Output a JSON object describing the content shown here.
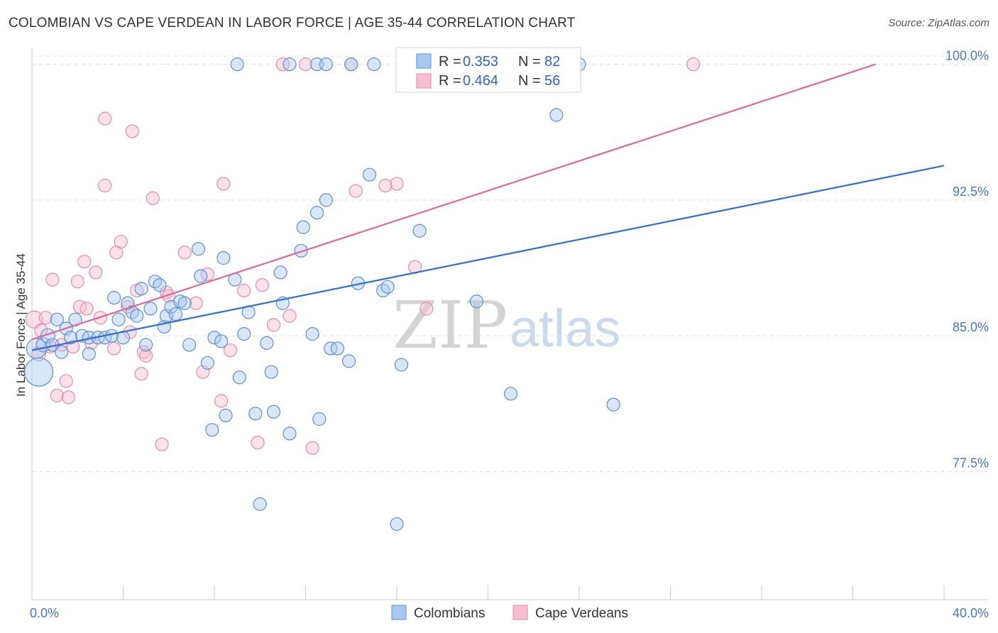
{
  "title": "COLOMBIAN VS CAPE VERDEAN IN LABOR FORCE | AGE 35-44 CORRELATION CHART",
  "source": "Source: ZipAtlas.com",
  "watermark": {
    "zip": "ZIP",
    "atlas": "atlas"
  },
  "colors": {
    "blue_fill": "#a9c8f0",
    "blue_stroke": "#5b8fd6",
    "blue_line": "#2f6fd0",
    "pink_fill": "#f6bfd0",
    "pink_stroke": "#e88aa8",
    "pink_line": "#e0679a",
    "grid": "#dddddd",
    "axis_tick_text": "#4477cc"
  },
  "legend": {
    "rows": [
      {
        "r_label": "R = ",
        "r_value": "0.353",
        "n_label": "N = ",
        "n_value": "82"
      },
      {
        "r_label": "R = ",
        "r_value": "0.464",
        "n_label": "N = ",
        "n_value": "56"
      }
    ]
  },
  "chart_data": {
    "type": "scatter",
    "title": "COLOMBIAN VS CAPE VERDEAN IN LABOR FORCE | AGE 35-44 CORRELATION CHART",
    "xlabel": "",
    "ylabel": "In Labor Force | Age 35-44",
    "xlim": [
      0,
      40
    ],
    "ylim": [
      70.5,
      101.2
    ],
    "x_tick_labels": [
      "0.0%",
      "40.0%"
    ],
    "y_ticks": [
      77.5,
      85.0,
      92.5,
      100.0
    ],
    "y_tick_labels": [
      "77.5%",
      "85.0%",
      "92.5%",
      "100.0%"
    ],
    "grid": true,
    "legend_position": "top-center",
    "series": [
      {
        "name": "Colombians",
        "r": 0.353,
        "n": 82,
        "trend": {
          "x": [
            0,
            40
          ],
          "y": [
            84.2,
            94.4
          ]
        },
        "points": [
          [
            0.2,
            84.3,
            14
          ],
          [
            0.3,
            83.0,
            20
          ],
          [
            0.5,
            84.5,
            10
          ],
          [
            0.7,
            85.0,
            10
          ],
          [
            0.9,
            84.5,
            9
          ],
          [
            1.1,
            85.9,
            9
          ],
          [
            1.3,
            84.1,
            9
          ],
          [
            1.5,
            85.4,
            9
          ],
          [
            1.7,
            84.9,
            9
          ],
          [
            1.9,
            85.9,
            9
          ],
          [
            2.2,
            85.0,
            9
          ],
          [
            2.5,
            84.9,
            9
          ],
          [
            2.5,
            84.0,
            9
          ],
          [
            2.9,
            84.9,
            9
          ],
          [
            3.2,
            84.9,
            9
          ],
          [
            3.5,
            85.0,
            9
          ],
          [
            3.6,
            87.1,
            9
          ],
          [
            3.8,
            85.9,
            9
          ],
          [
            4.0,
            84.9,
            9
          ],
          [
            4.2,
            86.8,
            9
          ],
          [
            4.4,
            86.3,
            9
          ],
          [
            4.6,
            86.1,
            9
          ],
          [
            4.8,
            87.6,
            9
          ],
          [
            5.0,
            84.5,
            9
          ],
          [
            5.2,
            86.5,
            9
          ],
          [
            5.4,
            88.0,
            9
          ],
          [
            5.6,
            87.8,
            9
          ],
          [
            5.8,
            85.5,
            9
          ],
          [
            5.9,
            86.1,
            9
          ],
          [
            6.1,
            86.6,
            9
          ],
          [
            6.3,
            86.2,
            9
          ],
          [
            6.5,
            86.9,
            9
          ],
          [
            6.7,
            86.8,
            9
          ],
          [
            6.9,
            84.5,
            9
          ],
          [
            7.3,
            89.8,
            9
          ],
          [
            7.4,
            88.3,
            9
          ],
          [
            7.7,
            83.5,
            9
          ],
          [
            7.9,
            79.8,
            9
          ],
          [
            8.0,
            84.9,
            9
          ],
          [
            8.3,
            84.7,
            9
          ],
          [
            8.4,
            89.3,
            9
          ],
          [
            8.5,
            80.6,
            9
          ],
          [
            8.9,
            88.1,
            9
          ],
          [
            9.1,
            82.7,
            9
          ],
          [
            9.3,
            85.1,
            9
          ],
          [
            9.5,
            86.3,
            9
          ],
          [
            9.8,
            80.7,
            9
          ],
          [
            10.0,
            75.7,
            9
          ],
          [
            10.3,
            84.6,
            9
          ],
          [
            10.5,
            83.0,
            9
          ],
          [
            10.6,
            80.8,
            9
          ],
          [
            10.9,
            88.5,
            9
          ],
          [
            11.0,
            86.8,
            9
          ],
          [
            11.3,
            79.6,
            9
          ],
          [
            11.8,
            89.7,
            9
          ],
          [
            11.9,
            91.0,
            9
          ],
          [
            12.3,
            85.1,
            9
          ],
          [
            12.5,
            91.8,
            9
          ],
          [
            12.5,
            100.0,
            9
          ],
          [
            12.6,
            80.4,
            9
          ],
          [
            12.9,
            92.5,
            9
          ],
          [
            13.1,
            84.3,
            9
          ],
          [
            13.4,
            84.3,
            9
          ],
          [
            13.9,
            83.6,
            9
          ],
          [
            14.0,
            100.0,
            9
          ],
          [
            14.3,
            87.9,
            9
          ],
          [
            14.8,
            93.9,
            9
          ],
          [
            15.0,
            100.0,
            9
          ],
          [
            15.4,
            87.5,
            9
          ],
          [
            15.6,
            87.7,
            9
          ],
          [
            16.0,
            74.6,
            9
          ],
          [
            16.2,
            83.4,
            9
          ],
          [
            17.0,
            90.8,
            9
          ],
          [
            19.5,
            86.9,
            9
          ],
          [
            20.0,
            100.0,
            9
          ],
          [
            21.0,
            81.8,
            9
          ],
          [
            23.0,
            97.2,
            9
          ],
          [
            24.0,
            100.0,
            9
          ],
          [
            25.5,
            81.2,
            9
          ],
          [
            9.0,
            100.0,
            9
          ],
          [
            11.3,
            100.0,
            9
          ],
          [
            12.9,
            100.0,
            9
          ]
        ]
      },
      {
        "name": "Cape Verdeans",
        "r": 0.464,
        "n": 56,
        "trend": {
          "x": [
            0,
            37
          ],
          "y": [
            84.8,
            100.0
          ]
        },
        "points": [
          [
            0.1,
            85.9,
            12
          ],
          [
            0.3,
            84.0,
            10
          ],
          [
            0.4,
            85.3,
            9
          ],
          [
            0.6,
            86.0,
            9
          ],
          [
            0.8,
            84.4,
            9
          ],
          [
            0.9,
            88.1,
            9
          ],
          [
            1.1,
            81.7,
            9
          ],
          [
            1.3,
            84.5,
            9
          ],
          [
            1.5,
            82.5,
            9
          ],
          [
            1.6,
            81.6,
            9
          ],
          [
            1.8,
            84.4,
            9
          ],
          [
            2.0,
            88.0,
            9
          ],
          [
            2.1,
            86.6,
            9
          ],
          [
            2.3,
            89.1,
            9
          ],
          [
            2.4,
            86.5,
            9
          ],
          [
            2.6,
            84.6,
            9
          ],
          [
            2.8,
            88.5,
            9
          ],
          [
            3.0,
            86.0,
            9
          ],
          [
            3.2,
            93.3,
            9
          ],
          [
            3.2,
            97.0,
            9
          ],
          [
            3.6,
            84.3,
            9
          ],
          [
            3.7,
            89.6,
            9
          ],
          [
            3.9,
            90.2,
            9
          ],
          [
            4.2,
            86.6,
            9
          ],
          [
            4.3,
            85.2,
            9
          ],
          [
            4.4,
            96.3,
            9
          ],
          [
            4.6,
            87.5,
            9
          ],
          [
            4.8,
            82.9,
            9
          ],
          [
            4.9,
            84.1,
            9
          ],
          [
            5.0,
            83.9,
            9
          ],
          [
            5.3,
            92.6,
            9
          ],
          [
            5.7,
            79.0,
            9
          ],
          [
            5.9,
            87.4,
            9
          ],
          [
            6.0,
            87.2,
            9
          ],
          [
            6.7,
            89.6,
            9
          ],
          [
            7.2,
            86.8,
            9
          ],
          [
            7.5,
            83.0,
            9
          ],
          [
            7.7,
            88.4,
            9
          ],
          [
            8.3,
            81.4,
            9
          ],
          [
            8.4,
            93.4,
            9
          ],
          [
            8.7,
            84.2,
            9
          ],
          [
            9.3,
            87.5,
            9
          ],
          [
            9.9,
            79.1,
            9
          ],
          [
            10.1,
            87.8,
            9
          ],
          [
            10.6,
            85.6,
            9
          ],
          [
            11.3,
            86.1,
            9
          ],
          [
            12.3,
            78.8,
            9
          ],
          [
            14.2,
            93.0,
            9
          ],
          [
            16.0,
            93.4,
            9
          ],
          [
            16.8,
            88.8,
            9
          ],
          [
            17.3,
            86.5,
            9
          ],
          [
            11.0,
            100.0,
            9
          ],
          [
            14.0,
            100.0,
            9
          ],
          [
            29.0,
            100.0,
            9
          ],
          [
            12.0,
            100.0,
            9
          ],
          [
            15.5,
            93.3,
            9
          ]
        ]
      }
    ]
  }
}
